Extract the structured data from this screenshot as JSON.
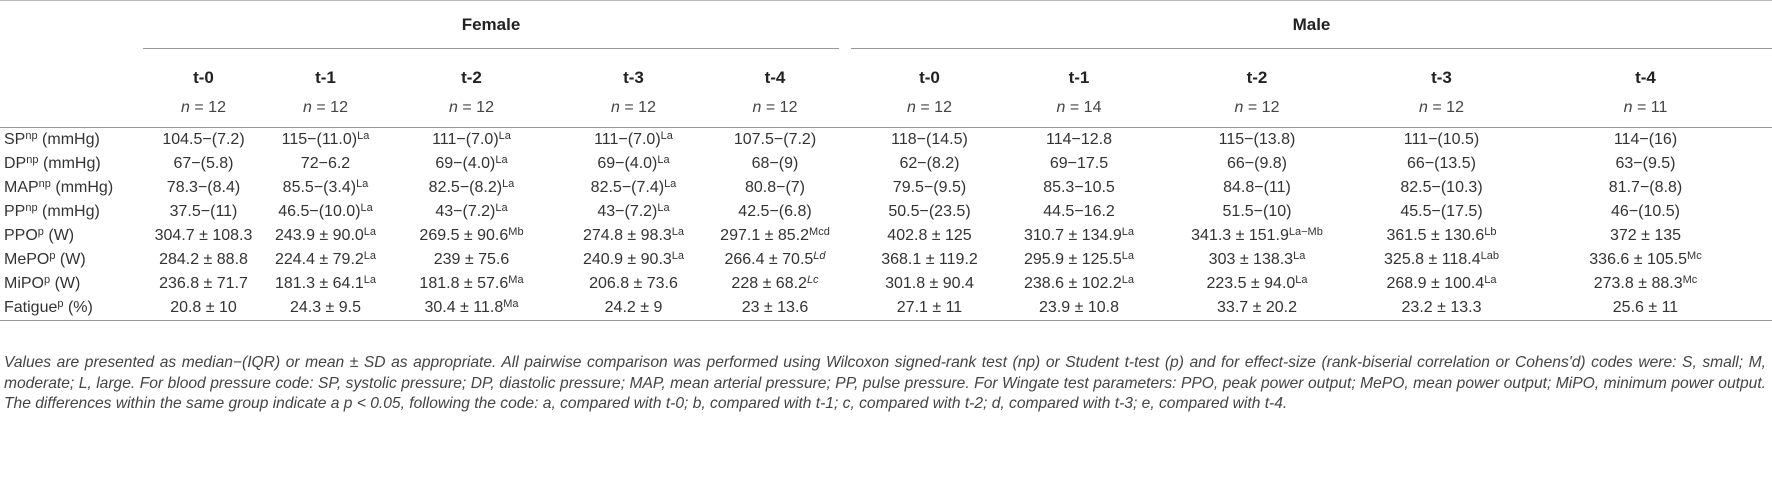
{
  "groups": [
    "Female",
    "Male"
  ],
  "timepoints": [
    "t-0",
    "t-1",
    "t-2",
    "t-3",
    "t-4"
  ],
  "n_label": "n",
  "n_values": {
    "female": [
      "= 12",
      "= 12",
      "= 12",
      "= 12",
      "= 12"
    ],
    "male": [
      "= 12",
      "= 14",
      "= 12",
      "= 12",
      "= 11"
    ]
  },
  "rows": [
    {
      "label": "SP",
      "label_sup": "np",
      "label_unit": "(mmHg)",
      "cells": [
        {
          "v": "104.5−(7.2)",
          "s": ""
        },
        {
          "v": "115−(11.0)",
          "s": "La"
        },
        {
          "v": "111−(7.0)",
          "s": "La"
        },
        {
          "v": "111−(7.0)",
          "s": "La"
        },
        {
          "v": "107.5−(7.2)",
          "s": ""
        },
        {
          "v": "118−(14.5)",
          "s": ""
        },
        {
          "v": "114−12.8",
          "s": ""
        },
        {
          "v": "115−(13.8)",
          "s": ""
        },
        {
          "v": "111−(10.5)",
          "s": ""
        },
        {
          "v": "114−(16)",
          "s": ""
        }
      ]
    },
    {
      "label": "DP",
      "label_sup": "np",
      "label_unit": "(mmHg)",
      "cells": [
        {
          "v": "67−(5.8)",
          "s": ""
        },
        {
          "v": "72−6.2",
          "s": ""
        },
        {
          "v": "69−(4.0)",
          "s": "La"
        },
        {
          "v": "69−(4.0)",
          "s": "La"
        },
        {
          "v": "68−(9)",
          "s": ""
        },
        {
          "v": "62−(8.2)",
          "s": ""
        },
        {
          "v": "69−17.5",
          "s": ""
        },
        {
          "v": "66−(9.8)",
          "s": ""
        },
        {
          "v": "66−(13.5)",
          "s": ""
        },
        {
          "v": "63−(9.5)",
          "s": ""
        }
      ]
    },
    {
      "label": "MAP",
      "label_sup": "np",
      "label_unit": "(mmHg)",
      "cells": [
        {
          "v": "78.3−(8.4)",
          "s": ""
        },
        {
          "v": "85.5−(3.4)",
          "s": "La"
        },
        {
          "v": "82.5−(8.2)",
          "s": "La"
        },
        {
          "v": "82.5−(7.4)",
          "s": "La"
        },
        {
          "v": "80.8−(7)",
          "s": ""
        },
        {
          "v": "79.5−(9.5)",
          "s": ""
        },
        {
          "v": "85.3−10.5",
          "s": ""
        },
        {
          "v": "84.8−(11)",
          "s": ""
        },
        {
          "v": "82.5−(10.3)",
          "s": ""
        },
        {
          "v": "81.7−(8.8)",
          "s": ""
        }
      ]
    },
    {
      "label": "PP",
      "label_sup": "np",
      "label_unit": "(mmHg)",
      "cells": [
        {
          "v": "37.5−(11)",
          "s": ""
        },
        {
          "v": "46.5−(10.0)",
          "s": "La"
        },
        {
          "v": "43−(7.2)",
          "s": "La"
        },
        {
          "v": "43−(7.2)",
          "s": "La"
        },
        {
          "v": "42.5−(6.8)",
          "s": ""
        },
        {
          "v": "50.5−(23.5)",
          "s": ""
        },
        {
          "v": "44.5−16.2",
          "s": ""
        },
        {
          "v": "51.5−(10)",
          "s": ""
        },
        {
          "v": "45.5−(17.5)",
          "s": ""
        },
        {
          "v": "46−(10.5)",
          "s": ""
        }
      ]
    },
    {
      "label": "PPO",
      "label_sup": "p",
      "label_unit": "(W)",
      "cells": [
        {
          "v": "304.7 ± 108.3",
          "s": ""
        },
        {
          "v": "243.9 ± 90.0",
          "s": "La"
        },
        {
          "v": "269.5 ± 90.6",
          "s": "Mb"
        },
        {
          "v": "274.8 ± 98.3",
          "s": "La"
        },
        {
          "v": "297.1 ± 85.2",
          "s": "Mcd"
        },
        {
          "v": "402.8 ± 125",
          "s": ""
        },
        {
          "v": "310.7 ± 134.9",
          "s": "La"
        },
        {
          "v": "341.3 ± 151.9",
          "s": "La−Mb"
        },
        {
          "v": "361.5 ± 130.6",
          "s": "Lb"
        },
        {
          "v": "372 ± 135",
          "s": ""
        }
      ]
    },
    {
      "label": "MePO",
      "label_sup": "p",
      "label_unit": "(W)",
      "cells": [
        {
          "v": "284.2 ± 88.8",
          "s": ""
        },
        {
          "v": "224.4 ± 79.2",
          "s": "La"
        },
        {
          "v": "239 ± 75.6",
          "s": ""
        },
        {
          "v": "240.9 ± 90.3",
          "s": "La"
        },
        {
          "v": "266.4 ± 70.5",
          "s": "Ld",
          "si": true
        },
        {
          "v": "368.1 ± 119.2",
          "s": ""
        },
        {
          "v": "295.9 ± 125.5",
          "s": "La"
        },
        {
          "v": "303 ± 138.3",
          "s": "La"
        },
        {
          "v": "325.8 ± 118.4",
          "s": "Lab"
        },
        {
          "v": "336.6 ± 105.5",
          "s": "Mc"
        }
      ]
    },
    {
      "label": "MiPO",
      "label_sup": "p",
      "label_unit": "(W)",
      "cells": [
        {
          "v": "236.8 ± 71.7",
          "s": ""
        },
        {
          "v": "181.3 ± 64.1",
          "s": "La"
        },
        {
          "v": "181.8 ± 57.6",
          "s": "Ma"
        },
        {
          "v": "206.8 ± 73.6",
          "s": ""
        },
        {
          "v": "228 ± 68.2",
          "s": "Lc",
          "si": true
        },
        {
          "v": "301.8 ± 90.4",
          "s": ""
        },
        {
          "v": "238.6 ± 102.2",
          "s": "La"
        },
        {
          "v": "223.5 ± 94.0",
          "s": "La"
        },
        {
          "v": "268.9 ± 100.4",
          "s": "La"
        },
        {
          "v": "273.8 ± 88.3",
          "s": "Mc"
        }
      ]
    },
    {
      "label": "Fatigue",
      "label_sup": "p",
      "label_unit": "(%)",
      "cells": [
        {
          "v": "20.8 ± 10",
          "s": ""
        },
        {
          "v": "24.3 ± 9.5",
          "s": ""
        },
        {
          "v": "30.4 ± 11.8",
          "s": "Ma"
        },
        {
          "v": "24.2 ± 9",
          "s": ""
        },
        {
          "v": "23 ± 13.6",
          "s": ""
        },
        {
          "v": "27.1 ± 11",
          "s": ""
        },
        {
          "v": "23.9 ± 10.8",
          "s": ""
        },
        {
          "v": "33.7 ± 20.2",
          "s": ""
        },
        {
          "v": "23.2 ± 13.3",
          "s": ""
        },
        {
          "v": "25.6 ± 11",
          "s": ""
        }
      ]
    }
  ],
  "footnote": {
    "a": "Values are presented as median−(IQR) or mean ± SD as appropriate. All pairwise comparison was performed using Wilcoxon signed-rank test (np) or Student t-test (p) and for effect-size (rank-biserial correlation or Cohens'd) codes were: S, small; M, moderate; L, large. For blood pressure code: SP, systolic pressure; DP, diastolic pressure; MAP, mean arterial pressure; PP, pulse pressure. For Wingate test parameters: PPO, peak power output; MePO, mean power output; MiPO, minimum power output. The differences within the same group indicate a ",
    "p": "p",
    "b": " < 0.05, following the code: a, compared with t-0; b, compared with t-1; c, compared with t-2; d, compared with t-3; e, compared with t-4."
  }
}
